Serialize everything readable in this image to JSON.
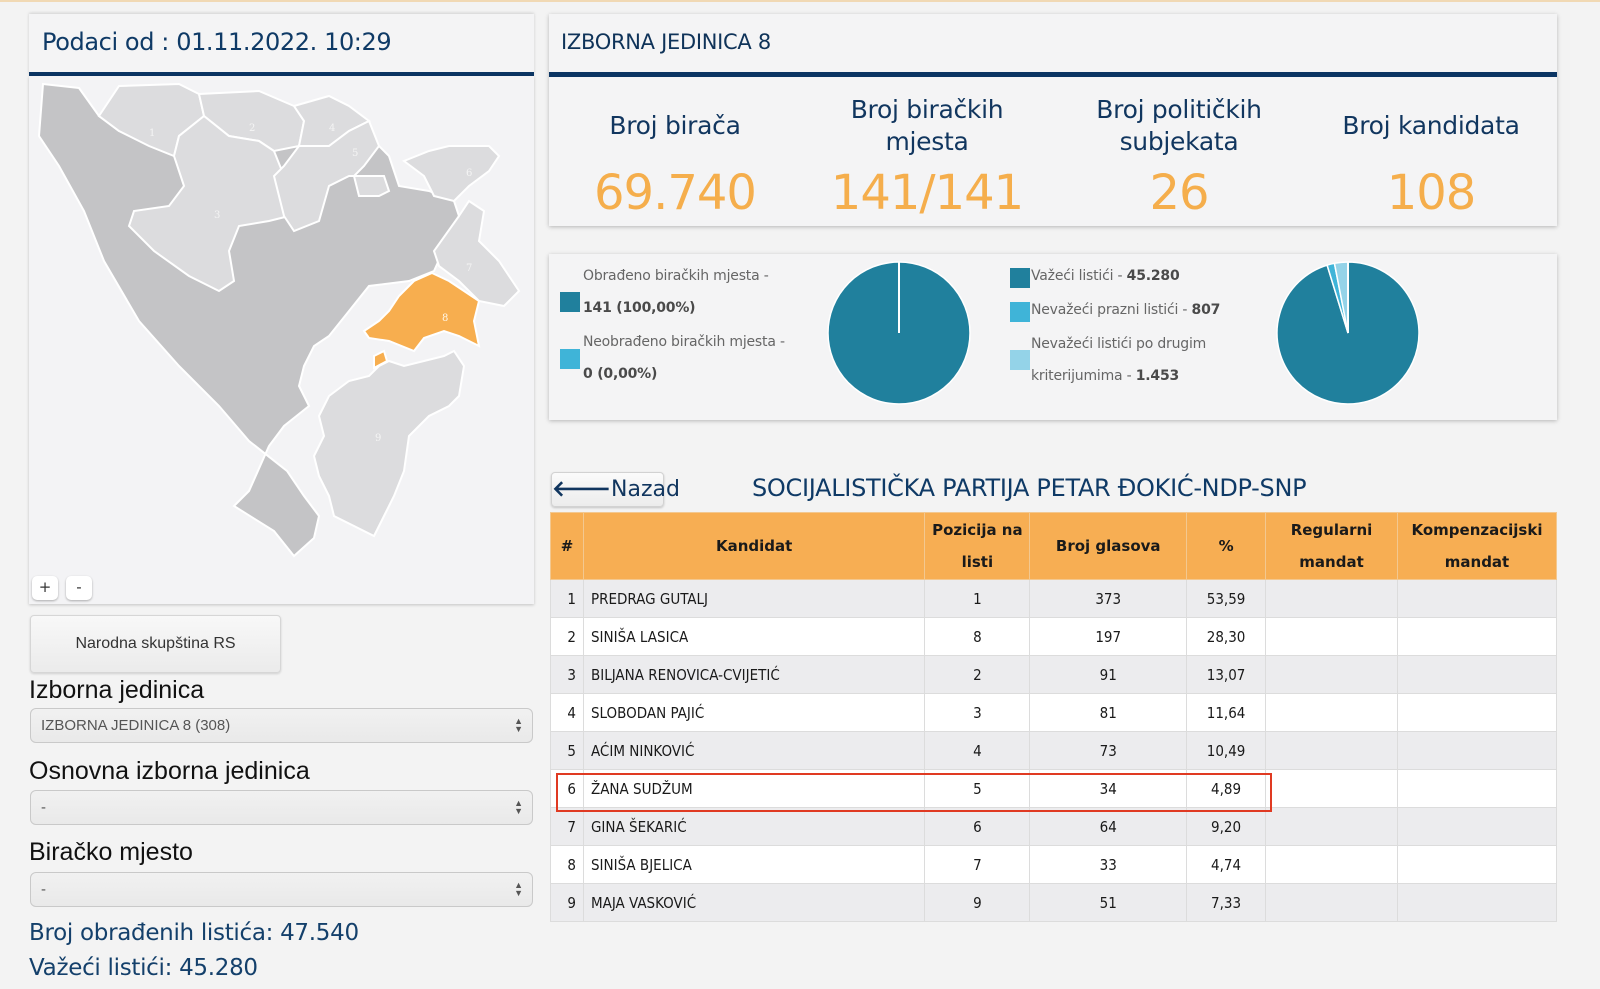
{
  "header": {
    "data_date": "Podaci od : 01.11.2022. 10:29",
    "unit_title": "IZBORNA JEDINICA 8"
  },
  "map": {
    "highlighted_unit": "8",
    "highlight_color": "#f7ae4f",
    "region_labels": [
      "1",
      "2",
      "3",
      "4",
      "5",
      "6",
      "7",
      "8",
      "9"
    ],
    "zoom_in_label": "+",
    "zoom_out_label": "-"
  },
  "left": {
    "assembly_button": "Narodna skupština RS",
    "izborna_label": "Izborna jedinica",
    "izborna_value": "IZBORNA JEDINICA 8 (308)",
    "osnovna_label": "Osnovna izborna jedinica",
    "osnovna_value": "-",
    "biracko_label": "Biračko mjesto",
    "biracko_value": "-",
    "processed_ballots": "Broj obrađenih listića: 47.540",
    "valid_ballots": "Važeći listići: 45.280"
  },
  "stats": [
    {
      "label": "Broj birača",
      "value": "69.740"
    },
    {
      "label": "Broj biračkih mjesta",
      "value": "141/141"
    },
    {
      "label": "Broj političkih subjekata",
      "value": "26"
    },
    {
      "label": "Broj kandidata",
      "value": "108"
    }
  ],
  "colors": {
    "dark_teal": "#20809d",
    "cyan": "#3fb4d8",
    "light_blue": "#94d3e8",
    "orange": "#f7ae53",
    "navy": "#0b3563"
  },
  "chart_data": [
    {
      "type": "pie",
      "title": "Obrađenost biračkih mjesta",
      "series": [
        {
          "name": "Obrađeno biračkih mjesta",
          "label_value": "141 (100,00%)",
          "value": 141,
          "color": "#20809d"
        },
        {
          "name": "Neobrađeno biračkih mjesta",
          "label_value": "0 (0,00%)",
          "value": 0,
          "color": "#3fb4d8"
        }
      ],
      "legend": "left"
    },
    {
      "type": "pie",
      "title": "Listići",
      "series": [
        {
          "name": "Važeći listići",
          "label_value": "45.280",
          "value": 45280,
          "color": "#20809d"
        },
        {
          "name": "Nevažeći prazni listići",
          "label_value": "807",
          "value": 807,
          "color": "#3fb4d8"
        },
        {
          "name": "Nevažeći listići po drugim kriterijumima",
          "label_value": "1.453",
          "value": 1453,
          "color": "#94d3e8"
        }
      ],
      "legend": "left"
    }
  ],
  "legend1": {
    "item0_text": "Obrađeno biračkih mjesta -",
    "item0_value": "141 (100,00%)",
    "item1_text": "Neobrađeno biračkih mjesta -",
    "item1_value": "0 (0,00%)"
  },
  "legend2": {
    "item0_text": "Važeći listići - ",
    "item0_value": "45.280",
    "item1_text": "Nevažeći prazni listići - ",
    "item1_value": "807",
    "item2_text_a": "Nevažeći listići po drugim",
    "item2_text_b": "kriterijumima - ",
    "item2_value": "1.453"
  },
  "party": {
    "back_label": "Nazad",
    "name": "SOCIJALISTIČKA PARTIJA PETAR ĐOKIĆ-NDP-SNP"
  },
  "table": {
    "headers": [
      "#",
      "Kandidat",
      "Pozicija na listi",
      "Broj glasova",
      "%",
      "Regularni mandat",
      "Kompenzacijski mandat"
    ],
    "highlighted_row": 6,
    "rows": [
      {
        "n": "1",
        "name": "PREDRAG GUTALJ",
        "pos": "1",
        "votes": "373",
        "pct": "53,59",
        "reg": "",
        "komp": ""
      },
      {
        "n": "2",
        "name": "SINIŠA LASICA",
        "pos": "8",
        "votes": "197",
        "pct": "28,30",
        "reg": "",
        "komp": ""
      },
      {
        "n": "3",
        "name": "BILJANA RENOVICA-CVIJETIĆ",
        "pos": "2",
        "votes": "91",
        "pct": "13,07",
        "reg": "",
        "komp": ""
      },
      {
        "n": "4",
        "name": "SLOBODAN PAJIĆ",
        "pos": "3",
        "votes": "81",
        "pct": "11,64",
        "reg": "",
        "komp": ""
      },
      {
        "n": "5",
        "name": "AĆIM NINKOVIĆ",
        "pos": "4",
        "votes": "73",
        "pct": "10,49",
        "reg": "",
        "komp": ""
      },
      {
        "n": "6",
        "name": "ŽANA SUDŽUM",
        "pos": "5",
        "votes": "34",
        "pct": "4,89",
        "reg": "",
        "komp": ""
      },
      {
        "n": "7",
        "name": "GINA ŠEKARIĆ",
        "pos": "6",
        "votes": "64",
        "pct": "9,20",
        "reg": "",
        "komp": ""
      },
      {
        "n": "8",
        "name": "SINIŠA BJELICA",
        "pos": "7",
        "votes": "33",
        "pct": "4,74",
        "reg": "",
        "komp": ""
      },
      {
        "n": "9",
        "name": "MAJA VASKOVIĆ",
        "pos": "9",
        "votes": "51",
        "pct": "7,33",
        "reg": "",
        "komp": ""
      }
    ]
  }
}
